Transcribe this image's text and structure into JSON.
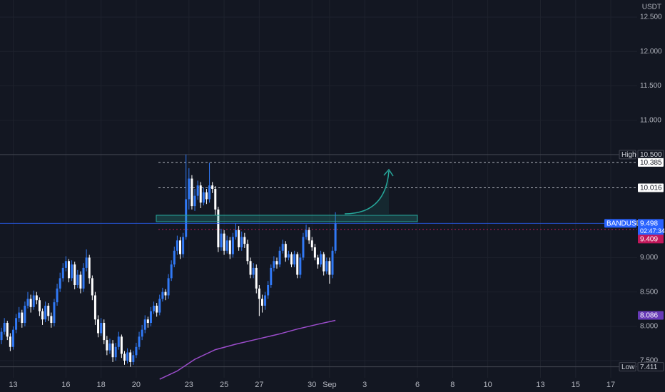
{
  "chart_data": {
    "type": "candlestick",
    "symbol": "BANDUSDT",
    "currency": "USDT",
    "up_color": "#3179f5",
    "down_color": "#ffffff",
    "candles": [
      [
        7.8,
        7.98,
        7.74,
        7.92
      ],
      [
        7.92,
        8.12,
        7.88,
        8.05
      ],
      [
        8.05,
        8.08,
        7.8,
        7.85
      ],
      [
        7.85,
        7.9,
        7.64,
        7.7
      ],
      [
        7.7,
        8.0,
        7.66,
        7.95
      ],
      [
        7.95,
        8.18,
        7.9,
        8.12
      ],
      [
        8.12,
        8.28,
        8.06,
        8.2
      ],
      [
        8.2,
        8.24,
        7.98,
        8.05
      ],
      [
        8.05,
        8.36,
        8.0,
        8.3
      ],
      [
        8.3,
        8.5,
        8.26,
        8.4
      ],
      [
        8.4,
        8.46,
        8.2,
        8.28
      ],
      [
        8.28,
        8.52,
        8.24,
        8.45
      ],
      [
        8.45,
        8.5,
        8.32,
        8.38
      ],
      [
        8.38,
        8.42,
        8.15,
        8.22
      ],
      [
        8.22,
        8.26,
        8.02,
        8.1
      ],
      [
        8.1,
        8.36,
        8.06,
        8.3
      ],
      [
        8.3,
        8.34,
        8.08,
        8.15
      ],
      [
        8.15,
        8.2,
        7.98,
        8.05
      ],
      [
        8.05,
        8.4,
        8.0,
        8.35
      ],
      [
        8.35,
        8.62,
        8.3,
        8.55
      ],
      [
        8.55,
        8.78,
        8.5,
        8.7
      ],
      [
        8.7,
        8.92,
        8.65,
        8.85
      ],
      [
        8.85,
        9.02,
        8.8,
        8.95
      ],
      [
        8.95,
        8.98,
        8.64,
        8.7
      ],
      [
        8.7,
        8.96,
        8.66,
        8.9
      ],
      [
        8.9,
        8.94,
        8.54,
        8.6
      ],
      [
        8.6,
        8.82,
        8.56,
        8.75
      ],
      [
        8.75,
        8.8,
        8.48,
        8.55
      ],
      [
        8.55,
        8.92,
        8.5,
        8.85
      ],
      [
        8.85,
        9.12,
        8.8,
        9.0
      ],
      [
        9.0,
        9.04,
        8.62,
        8.7
      ],
      [
        8.7,
        8.74,
        8.38,
        8.45
      ],
      [
        8.45,
        8.5,
        8.02,
        8.1
      ],
      [
        8.1,
        8.16,
        7.84,
        7.9
      ],
      [
        7.9,
        8.12,
        7.86,
        8.05
      ],
      [
        8.05,
        8.1,
        7.74,
        7.8
      ],
      [
        7.8,
        7.86,
        7.58,
        7.65
      ],
      [
        7.65,
        7.82,
        7.6,
        7.75
      ],
      [
        7.75,
        7.8,
        7.48,
        7.55
      ],
      [
        7.55,
        7.76,
        7.5,
        7.7
      ],
      [
        7.7,
        7.92,
        7.66,
        7.85
      ],
      [
        7.85,
        7.88,
        7.54,
        7.6
      ],
      [
        7.6,
        7.64,
        7.44,
        7.5
      ],
      [
        7.5,
        7.68,
        7.46,
        7.62
      ],
      [
        7.62,
        7.66,
        7.411,
        7.48
      ],
      [
        7.48,
        7.64,
        7.44,
        7.58
      ],
      [
        7.58,
        7.76,
        7.54,
        7.7
      ],
      [
        7.7,
        7.92,
        7.66,
        7.85
      ],
      [
        7.85,
        8.02,
        7.8,
        7.95
      ],
      [
        7.95,
        8.16,
        7.9,
        8.1
      ],
      [
        8.1,
        8.14,
        7.98,
        8.05
      ],
      [
        8.05,
        8.28,
        8.0,
        8.22
      ],
      [
        8.22,
        8.36,
        8.18,
        8.3
      ],
      [
        8.3,
        8.34,
        8.14,
        8.2
      ],
      [
        8.2,
        8.46,
        8.16,
        8.4
      ],
      [
        8.4,
        8.56,
        8.36,
        8.5
      ],
      [
        8.5,
        8.54,
        8.38,
        8.45
      ],
      [
        8.45,
        8.76,
        8.4,
        8.7
      ],
      [
        8.7,
        8.96,
        8.66,
        8.9
      ],
      [
        8.9,
        9.16,
        8.86,
        9.1
      ],
      [
        9.1,
        9.32,
        9.04,
        9.25
      ],
      [
        9.25,
        9.3,
        8.98,
        9.05
      ],
      [
        9.05,
        9.36,
        9.0,
        9.3
      ],
      [
        9.3,
        10.5,
        9.26,
        9.85
      ],
      [
        9.85,
        10.3,
        9.7,
        10.15
      ],
      [
        10.15,
        10.2,
        9.7,
        9.75
      ],
      [
        9.75,
        10.0,
        9.68,
        9.9
      ],
      [
        9.9,
        10.12,
        9.84,
        10.05
      ],
      [
        10.05,
        10.1,
        9.72,
        9.8
      ],
      [
        9.8,
        10.02,
        9.76,
        9.95
      ],
      [
        9.95,
        10.0,
        9.78,
        9.85
      ],
      [
        9.85,
        10.38,
        9.8,
        10.05
      ],
      [
        10.05,
        10.1,
        9.94,
        10.0
      ],
      [
        10.0,
        10.04,
        9.62,
        9.7
      ],
      [
        9.7,
        9.74,
        9.08,
        9.15
      ],
      [
        9.15,
        9.42,
        9.1,
        9.35
      ],
      [
        9.35,
        9.4,
        9.04,
        9.1
      ],
      [
        9.1,
        9.32,
        9.06,
        9.25
      ],
      [
        9.25,
        9.3,
        8.98,
        9.05
      ],
      [
        9.05,
        9.36,
        9.0,
        9.3
      ],
      [
        9.3,
        9.5,
        9.26,
        9.4
      ],
      [
        9.4,
        9.46,
        9.1,
        9.15
      ],
      [
        9.15,
        9.38,
        9.1,
        9.3
      ],
      [
        9.3,
        9.36,
        9.14,
        9.2
      ],
      [
        9.2,
        9.26,
        8.9,
        8.95
      ],
      [
        8.95,
        9.0,
        8.7,
        8.75
      ],
      [
        8.75,
        8.92,
        8.7,
        8.85
      ],
      [
        8.85,
        8.9,
        8.48,
        8.55
      ],
      [
        8.55,
        8.6,
        8.15,
        8.4
      ],
      [
        8.4,
        8.46,
        8.2,
        8.3
      ],
      [
        8.3,
        8.5,
        8.24,
        8.45
      ],
      [
        8.45,
        8.66,
        8.4,
        8.6
      ],
      [
        8.6,
        8.9,
        8.56,
        8.85
      ],
      [
        8.85,
        9.02,
        8.8,
        8.95
      ],
      [
        8.95,
        9.0,
        8.84,
        8.9
      ],
      [
        8.9,
        9.16,
        8.86,
        9.1
      ],
      [
        9.1,
        9.26,
        9.06,
        9.2
      ],
      [
        9.2,
        9.24,
        8.94,
        9.0
      ],
      [
        9.0,
        9.1,
        8.96,
        9.05
      ],
      [
        9.05,
        9.08,
        8.86,
        8.9
      ],
      [
        8.9,
        9.1,
        8.86,
        9.05
      ],
      [
        9.05,
        9.08,
        8.7,
        8.75
      ],
      [
        8.75,
        9.06,
        8.7,
        9.0
      ],
      [
        9.0,
        9.36,
        8.96,
        9.3
      ],
      [
        9.3,
        9.48,
        9.26,
        9.4
      ],
      [
        9.4,
        9.44,
        9.2,
        9.25
      ],
      [
        9.25,
        9.3,
        9.1,
        9.15
      ],
      [
        9.15,
        9.2,
        8.96,
        9.0
      ],
      [
        9.0,
        9.04,
        8.84,
        8.9
      ],
      [
        8.9,
        9.1,
        8.86,
        9.05
      ],
      [
        9.05,
        9.08,
        8.74,
        8.8
      ],
      [
        8.8,
        9.0,
        8.76,
        8.95
      ],
      [
        8.95,
        9.0,
        8.62,
        8.75
      ],
      [
        8.75,
        9.16,
        8.7,
        9.1
      ],
      [
        9.1,
        9.66,
        9.06,
        9.498
      ]
    ],
    "ma": {
      "color": "#9c4dcc",
      "x": [
        54,
        60,
        66,
        73,
        80,
        88,
        95,
        101,
        108,
        114
      ],
      "values": [
        7.23,
        7.35,
        7.52,
        7.66,
        7.74,
        7.82,
        7.89,
        7.96,
        8.03,
        8.086
      ]
    },
    "xlim": [
      -0.5,
      217
    ],
    "xticks": [
      {
        "value": 4,
        "label": "13"
      },
      {
        "value": 22,
        "label": "16"
      },
      {
        "value": 34,
        "label": "18"
      },
      {
        "value": 46,
        "label": "20"
      },
      {
        "value": 64,
        "label": "23"
      },
      {
        "value": 76,
        "label": "25"
      },
      {
        "value": 88,
        "label": "27"
      },
      {
        "value": 106,
        "label": "30"
      },
      {
        "value": 112,
        "label": "Sep"
      },
      {
        "value": 124,
        "label": "3"
      },
      {
        "value": 142,
        "label": "6"
      },
      {
        "value": 154,
        "label": "8"
      },
      {
        "value": 166,
        "label": "10"
      },
      {
        "value": 184,
        "label": "13"
      },
      {
        "value": 196,
        "label": "15"
      },
      {
        "value": 208,
        "label": "17"
      }
    ],
    "ylim": [
      7.044,
      12.749
    ],
    "yticks": [
      {
        "value": 12.5,
        "label": "12.500"
      },
      {
        "value": 12,
        "label": "12.000"
      },
      {
        "value": 11.5,
        "label": "11.500"
      },
      {
        "value": 11,
        "label": "11.000"
      },
      {
        "value": 9,
        "label": "9.000"
      },
      {
        "value": 8.5,
        "label": "8.500"
      },
      {
        "value": 8,
        "label": "8.000"
      },
      {
        "value": 7.5,
        "label": "7.500"
      }
    ],
    "grid": true,
    "high": {
      "label": "High",
      "value": 10.5,
      "value_label": "10.500"
    },
    "low": {
      "label": "Low",
      "value": 7.411
    },
    "levels": [
      10.385,
      10.016
    ],
    "last": {
      "value": 9.498,
      "countdown": "02:47:34"
    },
    "mark_price": 9.409
  }
}
